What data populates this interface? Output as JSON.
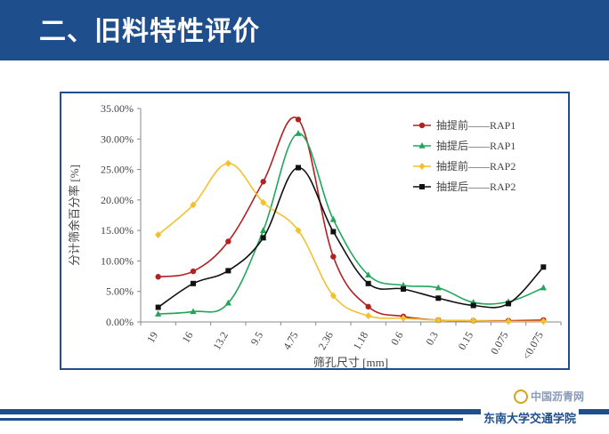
{
  "header": {
    "title": "二、旧料特性评价"
  },
  "footer": {
    "watermark": "中国沥青网",
    "school": "东南大学交通学院"
  },
  "chart_data": {
    "type": "line",
    "ylabel": "分计筛余百分率 [%]",
    "xlabel": "筛孔尺寸 [mm]",
    "categories": [
      "19",
      "16",
      "13.2",
      "9.5",
      "4.75",
      "2.36",
      "1.18",
      "0.6",
      "0.3",
      "0.15",
      "0.075",
      "<0.075"
    ],
    "ylim": [
      0,
      35
    ],
    "yticks": [
      "0.00%",
      "5.00%",
      "10.00%",
      "15.00%",
      "20.00%",
      "25.00%",
      "30.00%",
      "35.00%"
    ],
    "ytick_values": [
      0,
      5,
      10,
      15,
      20,
      25,
      30,
      35
    ],
    "grid": false,
    "legend": "top-right",
    "series": [
      {
        "name": "抽提前——RAP1",
        "color": "#b22222",
        "marker": "circle",
        "values": [
          7.4,
          8.3,
          13.2,
          23.0,
          33.2,
          10.7,
          2.5,
          0.9,
          0.3,
          0.2,
          0.2,
          0.3
        ]
      },
      {
        "name": "抽提后——RAP1",
        "color": "#20a65a",
        "marker": "triangle",
        "values": [
          1.3,
          1.7,
          3.1,
          15.0,
          30.9,
          16.8,
          7.7,
          6.0,
          5.6,
          3.2,
          3.3,
          5.6
        ]
      },
      {
        "name": "抽提前——RAP2",
        "color": "#f2c12e",
        "marker": "diamond",
        "values": [
          14.3,
          19.2,
          26.0,
          19.6,
          15.0,
          4.3,
          1.0,
          0.6,
          0.3,
          0.2,
          0.1,
          0.1
        ]
      },
      {
        "name": "抽提后——RAP2",
        "color": "#111111",
        "marker": "square",
        "values": [
          2.4,
          6.3,
          8.4,
          13.8,
          25.3,
          14.8,
          6.3,
          5.4,
          3.9,
          2.7,
          3.0,
          9.0
        ]
      }
    ]
  }
}
